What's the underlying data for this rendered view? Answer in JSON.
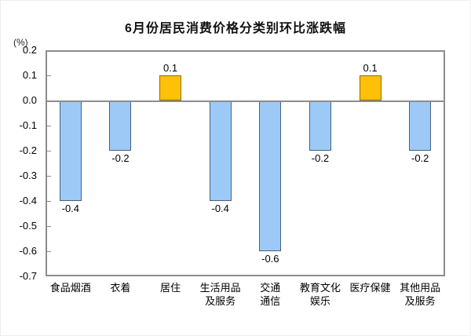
{
  "chart_data": {
    "type": "bar",
    "title": "6月份居民消费价格分类别环比涨跌幅",
    "unit_label": "(%)",
    "categories": [
      "食品烟酒",
      "衣着",
      "居住",
      "生活用品及服务",
      "交通通信",
      "教育文化娱乐",
      "医疗保健",
      "其他用品及服务"
    ],
    "category_lines": [
      [
        "食品烟酒"
      ],
      [
        "衣着"
      ],
      [
        "居住"
      ],
      [
        "生活用品",
        "及服务"
      ],
      [
        "交通",
        "通信"
      ],
      [
        "教育文化",
        "娱乐"
      ],
      [
        "医疗保健"
      ],
      [
        "其他用品",
        "及服务"
      ]
    ],
    "values": [
      -0.4,
      -0.2,
      0.1,
      -0.4,
      -0.6,
      -0.2,
      0.1,
      -0.2
    ],
    "value_labels": [
      "-0.4",
      "-0.2",
      "0.1",
      "-0.4",
      "-0.6",
      "-0.2",
      "0.1",
      "-0.2"
    ],
    "xlabel": "",
    "ylabel": "(%)",
    "ylim": [
      -0.7,
      0.2
    ],
    "ytick_step": 0.1,
    "ytick_labels": [
      "0.2",
      "0.1",
      "0.0",
      "-0.1",
      "-0.2",
      "-0.3",
      "-0.4",
      "-0.5",
      "-0.6",
      "-0.7"
    ],
    "grid": "zero-line-only",
    "legend_position": "none",
    "colors": {
      "positive_fill": "#FFC008",
      "positive_border": "#8F6C14",
      "negative_fill": "#9DC9F7",
      "negative_border": "#46627E",
      "frame": "#8C8C8C",
      "zero_line": "#8C8C8C",
      "text": "#000000"
    }
  }
}
